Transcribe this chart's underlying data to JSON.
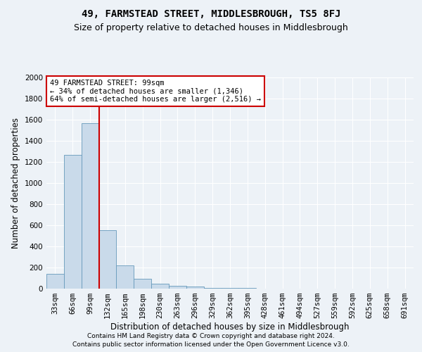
{
  "title": "49, FARMSTEAD STREET, MIDDLESBROUGH, TS5 8FJ",
  "subtitle": "Size of property relative to detached houses in Middlesbrough",
  "xlabel": "Distribution of detached houses by size in Middlesbrough",
  "ylabel": "Number of detached properties",
  "bar_color": "#c9daea",
  "bar_edge_color": "#6699bb",
  "categories": [
    "33sqm",
    "66sqm",
    "99sqm",
    "132sqm",
    "165sqm",
    "198sqm",
    "230sqm",
    "263sqm",
    "296sqm",
    "329sqm",
    "362sqm",
    "395sqm",
    "428sqm",
    "461sqm",
    "494sqm",
    "527sqm",
    "559sqm",
    "592sqm",
    "625sqm",
    "658sqm",
    "691sqm"
  ],
  "values": [
    140,
    1270,
    1570,
    555,
    220,
    95,
    50,
    30,
    20,
    10,
    10,
    5,
    0,
    0,
    0,
    0,
    0,
    0,
    0,
    0,
    0
  ],
  "ylim": [
    0,
    2000
  ],
  "yticks": [
    0,
    200,
    400,
    600,
    800,
    1000,
    1200,
    1400,
    1600,
    1800,
    2000
  ],
  "vline_x_index": 2,
  "vline_color": "#cc0000",
  "annotation_text": "49 FARMSTEAD STREET: 99sqm\n← 34% of detached houses are smaller (1,346)\n64% of semi-detached houses are larger (2,516) →",
  "annotation_box_color": "#ffffff",
  "annotation_box_edge": "#cc0000",
  "footer_line1": "Contains HM Land Registry data © Crown copyright and database right 2024.",
  "footer_line2": "Contains public sector information licensed under the Open Government Licence v3.0.",
  "background_color": "#edf2f7",
  "grid_color": "#ffffff",
  "title_fontsize": 10,
  "subtitle_fontsize": 9,
  "axis_label_fontsize": 8.5,
  "tick_fontsize": 7.5,
  "annotation_fontsize": 7.5,
  "footer_fontsize": 6.5
}
